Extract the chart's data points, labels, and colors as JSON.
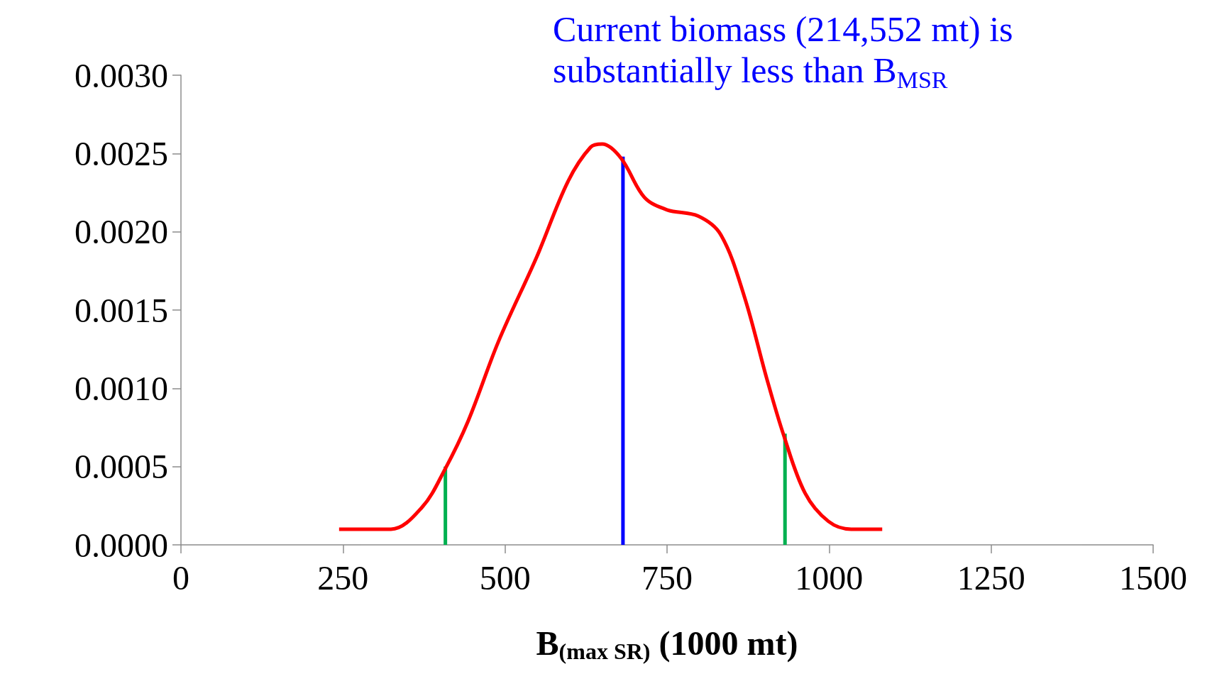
{
  "chart_data": {
    "type": "line",
    "xlabel": "B$_{(max SR)}$ (1000 mt)",
    "annotations": [
      "Current biomass (214,552 mt) is substantially less than B$_{MSR}$"
    ],
    "xlim": [
      0,
      1500
    ],
    "xticks": [
      0,
      250,
      500,
      750,
      1000,
      1250,
      1500
    ],
    "ylim": [
      0,
      0.003
    ],
    "yticks": [
      {
        "value": 0,
        "label": "0.0000"
      },
      {
        "value": 0.0005,
        "label": "0.0005"
      },
      {
        "value": 0.001,
        "label": "0.0010"
      },
      {
        "value": 0.0015,
        "label": "0.0015"
      },
      {
        "value": 0.002,
        "label": "0.0020"
      },
      {
        "value": 0.0025,
        "label": "0.0025"
      },
      {
        "value": 0.003,
        "label": "0.0030"
      }
    ],
    "marker": "none",
    "series": [
      {
        "color": "#ff0000",
        "x": [
          244,
          324,
          372,
          407,
          443,
          490,
          549,
          597,
          632,
          650,
          679,
          715,
          750,
          798,
          833,
          869,
          904,
          930,
          963,
          999,
          1034,
          1082
        ],
        "values": [
          0.0001,
          0.0001,
          0.00024,
          0.00048,
          0.00079,
          0.0013,
          0.00184,
          0.00232,
          0.00254,
          0.00256,
          0.00247,
          0.00222,
          0.00214,
          0.0021,
          0.00198,
          0.00159,
          0.00106,
          0.0007,
          0.00033,
          0.00015,
          0.0001,
          0.0001
        ]
      },
      {
        "color": "#00b050",
        "x": [
          408,
          408
        ],
        "values": [
          0,
          0.0005
        ]
      },
      {
        "color": "#0000ff",
        "x": [
          682,
          682
        ],
        "values": [
          0,
          0.00248
        ]
      },
      {
        "color": "#00b050",
        "x": [
          932,
          932
        ],
        "values": [
          0,
          0.00071
        ]
      }
    ]
  }
}
